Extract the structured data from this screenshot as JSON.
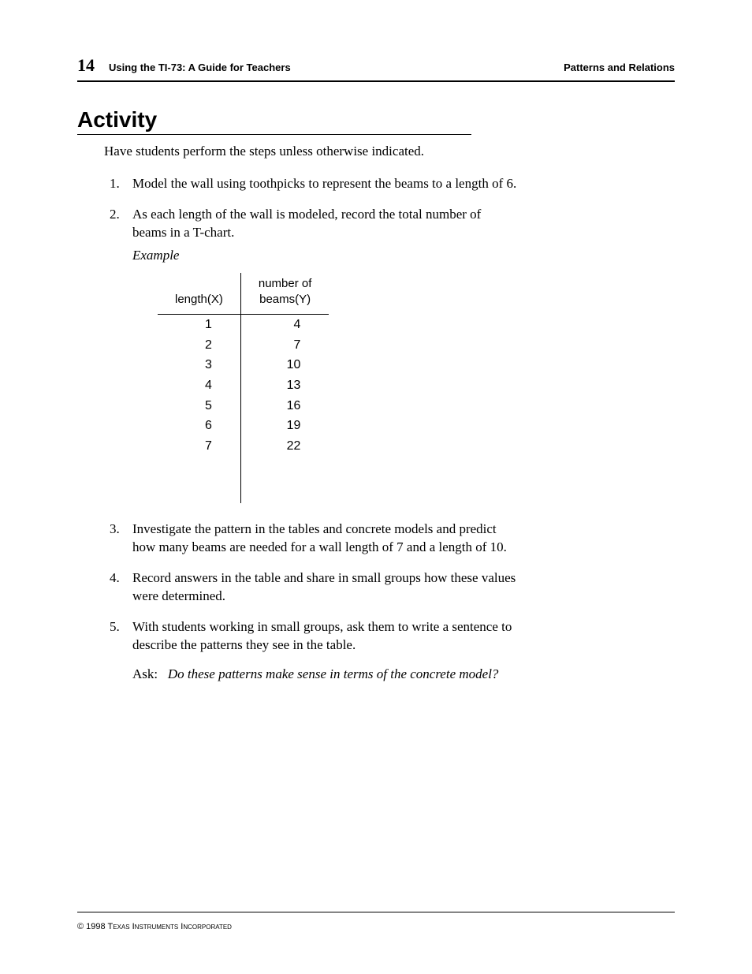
{
  "header": {
    "page_number": "14",
    "book_title": "Using the TI-73: A Guide for Teachers",
    "section_name": "Patterns and Relations"
  },
  "section_heading": "Activity",
  "intro": "Have students perform the steps unless otherwise indicated.",
  "steps": {
    "1": "Model the wall using toothpicks to represent the beams to a length of 6.",
    "2": "As each length of the wall is modeled, record the total number of beams in a T-chart.",
    "3": "Investigate the pattern in the tables and concrete models and predict how many beams are needed for a wall length of 7 and a length of 10.",
    "4": "Record answers in the table and share in small groups how these values were determined.",
    "5": "With students working in small groups, ask them to write a sentence to describe the patterns they see in the table."
  },
  "example_label": "Example",
  "tchart": {
    "columns": [
      "length(X)",
      "number of beams(Y)"
    ],
    "rows": [
      [
        "1",
        "4"
      ],
      [
        "2",
        "7"
      ],
      [
        "3",
        "10"
      ],
      [
        "4",
        "13"
      ],
      [
        "5",
        "16"
      ],
      [
        "6",
        "19"
      ],
      [
        "7",
        "22"
      ]
    ]
  },
  "ask": {
    "label": "Ask:",
    "question": "Do these patterns make sense in terms of the concrete model?"
  },
  "footer": "© 1998 Texas Instruments Incorporated"
}
